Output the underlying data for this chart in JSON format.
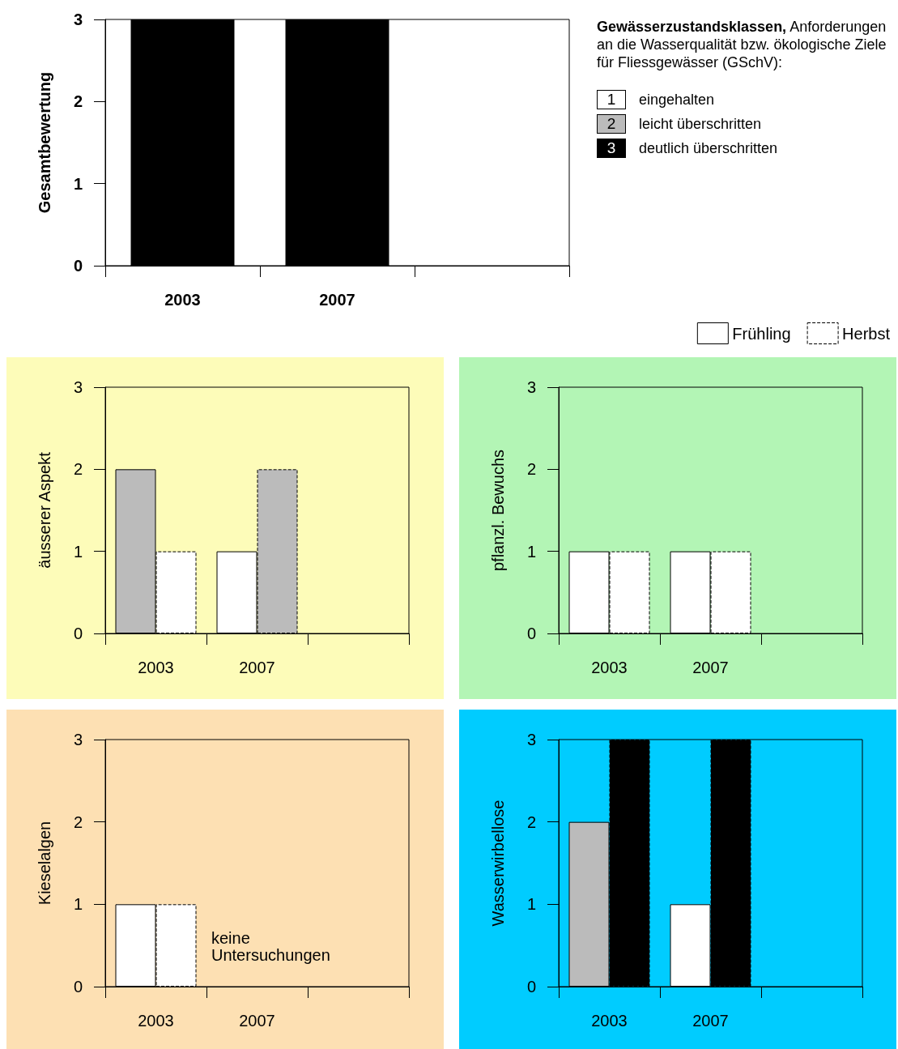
{
  "chart_data": [
    {
      "type": "bar",
      "ylabel": "Gesamtbewertung",
      "categories": [
        "2003",
        "2007",
        null
      ],
      "values": [
        3,
        3,
        null
      ],
      "color": "#000000",
      "ylim": [
        0,
        3
      ],
      "yticks": [
        0,
        1,
        2,
        3
      ]
    },
    {
      "type": "other",
      "title": "Gewässerzustandsklassen, Anforderungen an die Wasserqualität bzw. ökologische Ziele für Fliessgewässer (GSchV):",
      "categories": [
        "eingehalten",
        "leicht überschritten",
        "deutlich überschritten"
      ],
      "annotations": [
        "1",
        "2",
        "3"
      ],
      "colors": [
        "#ffffff",
        "#bbbbbb",
        "#000000"
      ]
    },
    {
      "type": "bar",
      "ylabel": "äusserer Aspekt",
      "categories": [
        "2003",
        "2007",
        null
      ],
      "ylim": [
        0,
        3
      ],
      "yticks": [
        0,
        1,
        2,
        3
      ],
      "series": [
        {
          "values": [
            2,
            1,
            null
          ],
          "colors": [
            "#bbbbbb",
            "#ffffff",
            null
          ],
          "line_style": "solid"
        },
        {
          "values": [
            1,
            2,
            null
          ],
          "colors": [
            "#ffffff",
            "#bbbbbb",
            null
          ],
          "line_style": "dashed"
        }
      ]
    },
    {
      "type": "bar",
      "ylabel": "pflanzl. Bewuchs",
      "categories": [
        "2003",
        "2007",
        null
      ],
      "ylim": [
        0,
        3
      ],
      "yticks": [
        0,
        1,
        2,
        3
      ],
      "legend": "top right",
      "series": [
        {
          "name": "Frühling",
          "values": [
            1,
            1,
            null
          ],
          "colors": [
            "#ffffff",
            "#ffffff",
            null
          ],
          "line_style": "solid"
        },
        {
          "name": "Herbst",
          "values": [
            1,
            1,
            null
          ],
          "colors": [
            "#ffffff",
            "#ffffff",
            null
          ],
          "line_style": "dashed"
        }
      ]
    },
    {
      "type": "bar",
      "ylabel": "Kieselalgen",
      "categories": [
        "2003",
        "2007",
        null
      ],
      "ylim": [
        0,
        3
      ],
      "yticks": [
        0,
        1,
        2,
        3
      ],
      "annotations": [
        "keine Untersuchungen"
      ],
      "series": [
        {
          "values": [
            1,
            null,
            null
          ],
          "colors": [
            "#ffffff",
            null,
            null
          ],
          "line_style": "solid"
        },
        {
          "values": [
            1,
            null,
            null
          ],
          "colors": [
            "#ffffff",
            null,
            null
          ],
          "line_style": "dashed"
        }
      ]
    },
    {
      "type": "bar",
      "ylabel": "Wasserwirbellose",
      "categories": [
        "2003",
        "2007",
        null
      ],
      "ylim": [
        0,
        3
      ],
      "yticks": [
        0,
        1,
        2,
        3
      ],
      "series": [
        {
          "values": [
            2,
            1,
            null
          ],
          "colors": [
            "#bbbbbb",
            "#ffffff",
            null
          ],
          "line_style": "solid"
        },
        {
          "values": [
            3,
            3,
            null
          ],
          "colors": [
            "#000000",
            "#000000",
            null
          ],
          "line_style": "dashed"
        }
      ]
    }
  ]
}
